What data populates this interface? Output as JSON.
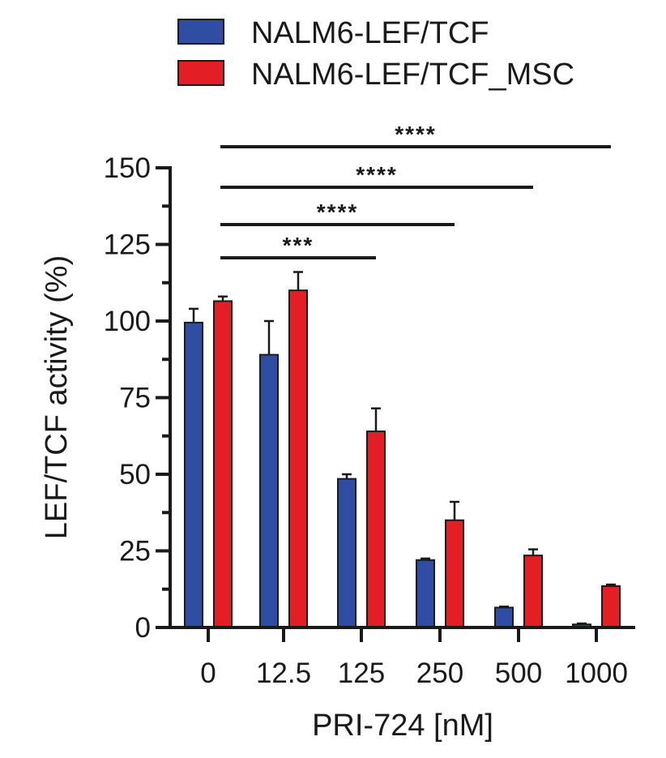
{
  "chart_data": {
    "type": "bar",
    "categories": [
      "0",
      "12.5",
      "125",
      "250",
      "500",
      "1000"
    ],
    "series": [
      {
        "name": "NALM6-LEF/TCF",
        "color": "#2f4ea3",
        "values": [
          99.5,
          89,
          48.5,
          22,
          6.5,
          1
        ],
        "error": [
          4.5,
          11,
          1.5,
          0.5,
          0.3,
          0.3
        ]
      },
      {
        "name": "NALM6-LEF/TCF_MSC",
        "color": "#e31e25",
        "values": [
          106.5,
          110,
          64,
          35,
          23.5,
          13.5
        ],
        "error": [
          1.5,
          6,
          7.5,
          6,
          2,
          0.5
        ]
      }
    ],
    "xlabel": "PRI-724 [nM]",
    "ylabel": "LEF/TCF activity (%)",
    "ylim": [
      0,
      150
    ],
    "yticks": [
      "0",
      "25",
      "50",
      "75",
      "100",
      "125",
      "150"
    ],
    "legend_position": "top",
    "significance": [
      {
        "from": "0",
        "to": "1000",
        "label": "****"
      },
      {
        "from": "0",
        "to": "500",
        "label": "****"
      },
      {
        "from": "0",
        "to": "250",
        "label": "****"
      },
      {
        "from": "0",
        "to": "125",
        "label": "***"
      }
    ]
  }
}
